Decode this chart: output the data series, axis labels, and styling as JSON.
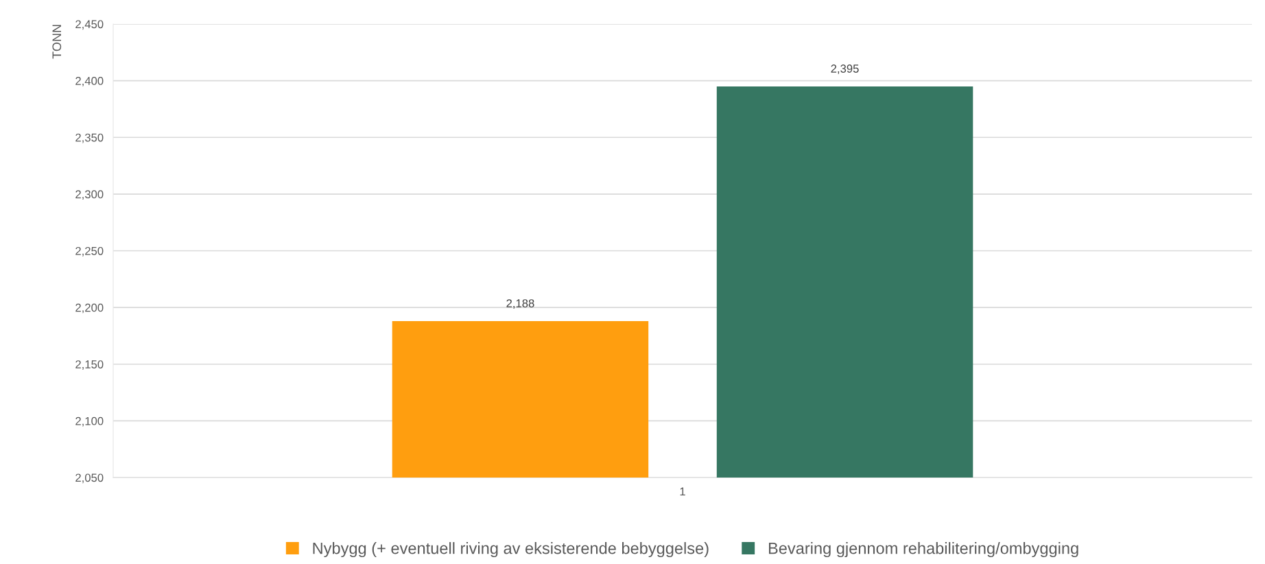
{
  "chart_data": {
    "type": "bar",
    "ylabel": "TONN",
    "categories": [
      "1"
    ],
    "series": [
      {
        "name": "Nybygg (+ eventuell riving av eksisterende bebyggelse)",
        "color": "#ff9e0f",
        "values": [
          2188
        ],
        "value_labels": [
          "2,188"
        ]
      },
      {
        "name": "Bevaring gjennom rehabilitering/ombygging",
        "color": "#367762",
        "values": [
          2395
        ],
        "value_labels": [
          "2,395"
        ]
      }
    ],
    "ylim": [
      2050,
      2450
    ],
    "yticks": [
      {
        "value": 2050,
        "label": "2,050"
      },
      {
        "value": 2100,
        "label": "2,100"
      },
      {
        "value": 2150,
        "label": "2,150"
      },
      {
        "value": 2200,
        "label": "2,200"
      },
      {
        "value": 2250,
        "label": "2,250"
      },
      {
        "value": 2300,
        "label": "2,300"
      },
      {
        "value": 2350,
        "label": "2,350"
      },
      {
        "value": 2400,
        "label": "2,400"
      },
      {
        "value": 2450,
        "label": "2,450"
      }
    ],
    "grid": "y",
    "legend": "bottom"
  }
}
